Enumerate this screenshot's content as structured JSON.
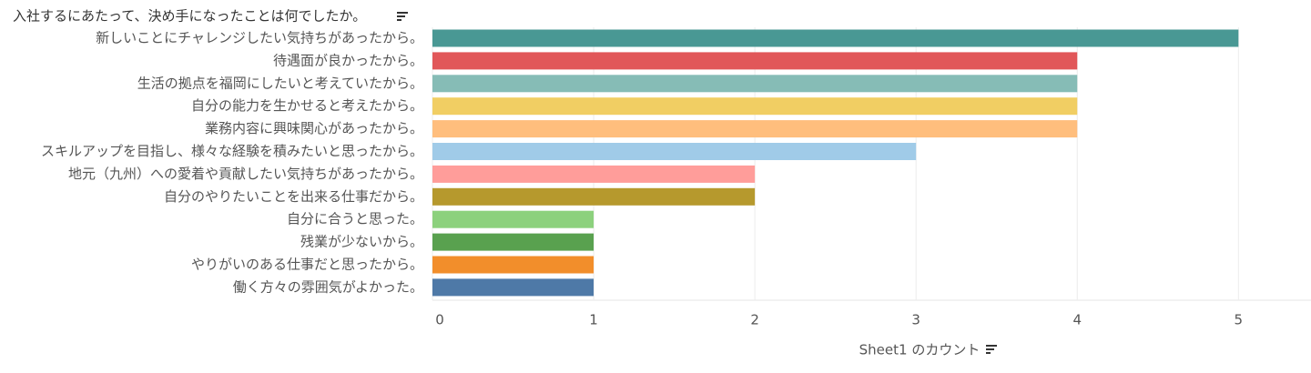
{
  "chart_data": {
    "type": "bar",
    "orientation": "horizontal",
    "title": "入社するにあたって、決め手になったことは何でしたか。",
    "x_label": "Sheet1 のカウント",
    "categories": [
      "新しいことにチャレンジしたい気持ちがあったから。",
      "待遇面が良かったから。",
      "生活の拠点を福岡にしたいと考えていたから。",
      "自分の能力を生かせると考えたから。",
      "業務内容に興味関心があったから。",
      "スキルアップを目指し、様々な経験を積みたいと思ったから。",
      "地元（九州）への愛着や貢献したい気持ちがあったから。",
      "自分のやりたいことを出来る仕事だから。",
      "自分に合うと思った。",
      "残業が少ないから。",
      "やりがいのある仕事だと思ったから。",
      "働く方々の雰囲気がよかった。"
    ],
    "values": [
      5,
      4,
      4,
      4,
      4,
      3,
      2,
      2,
      1,
      1,
      1,
      1
    ],
    "colors": [
      "#499894",
      "#E15759",
      "#86BCB6",
      "#F1CE63",
      "#FFBE7D",
      "#A0CBE8",
      "#FF9D9A",
      "#B6992D",
      "#8CD17D",
      "#59A14F",
      "#F28E2B",
      "#4E79A7"
    ],
    "xlim": [
      0,
      5.45
    ],
    "xticks": [
      0,
      1,
      2,
      3,
      4,
      5
    ],
    "grid": true
  }
}
